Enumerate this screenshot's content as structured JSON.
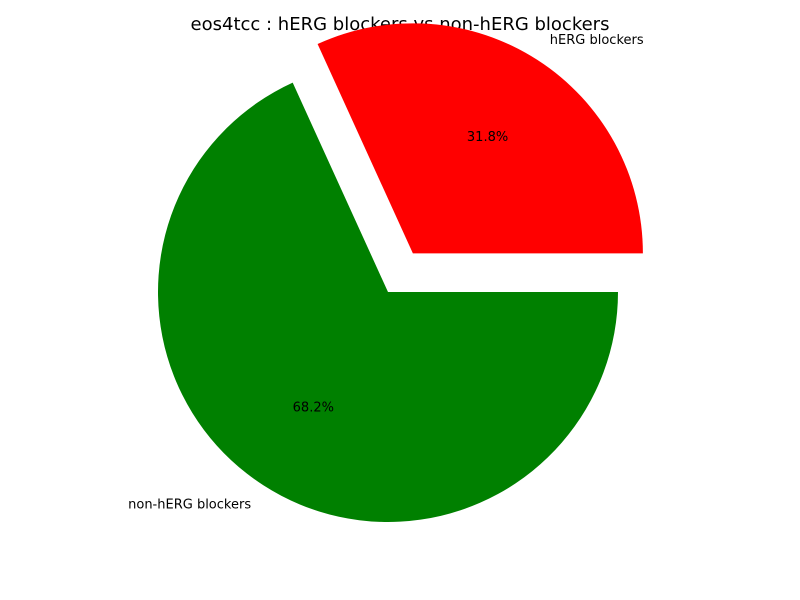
{
  "chart_data": {
    "type": "pie",
    "title": "eos4tcc : hERG blockers vs non-hERG blockers",
    "slices": [
      {
        "label": "hERG blockers",
        "percent_label": "31.8%",
        "value": 31.8,
        "color": "#ff0000",
        "exploded": true
      },
      {
        "label": "non-hERG blockers",
        "percent_label": "68.2%",
        "value": 68.2,
        "color": "#008000",
        "exploded": false
      }
    ],
    "legend": false
  }
}
